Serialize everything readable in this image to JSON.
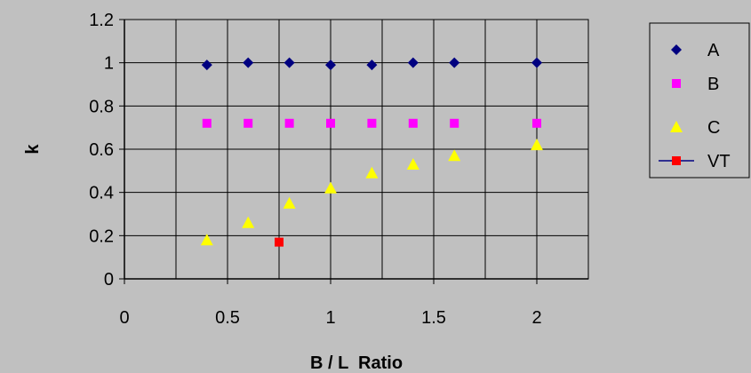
{
  "chart_data": {
    "type": "scatter",
    "xlabel": "B / L  Ratio",
    "ylabel": "k",
    "xlim": [
      0,
      2.25
    ],
    "ylim": [
      0,
      1.2
    ],
    "x_ticks": [
      0,
      0.5,
      1,
      1.5,
      2
    ],
    "x_tick_labels": [
      "0",
      "0.5",
      "1",
      "1.5",
      "2"
    ],
    "y_ticks": [
      0,
      0.2,
      0.4,
      0.6,
      0.8,
      1,
      1.2
    ],
    "y_tick_labels": [
      "0",
      "0.2",
      "0.4",
      "0.6",
      "0.8",
      "1",
      "1.2"
    ],
    "x_grid_step": 0.25,
    "grid": true,
    "legend_position": "right",
    "series": [
      {
        "name": "A",
        "marker": "diamond",
        "color": "#000080",
        "points": [
          [
            0.4,
            0.99
          ],
          [
            0.6,
            1.0
          ],
          [
            0.8,
            1.0
          ],
          [
            1.0,
            0.99
          ],
          [
            1.2,
            0.99
          ],
          [
            1.4,
            1.0
          ],
          [
            1.6,
            1.0
          ],
          [
            2.0,
            1.0
          ]
        ]
      },
      {
        "name": "B",
        "marker": "square",
        "color": "#ff00ff",
        "points": [
          [
            0.4,
            0.72
          ],
          [
            0.6,
            0.72
          ],
          [
            0.8,
            0.72
          ],
          [
            1.0,
            0.72
          ],
          [
            1.2,
            0.72
          ],
          [
            1.4,
            0.72
          ],
          [
            1.6,
            0.72
          ],
          [
            2.0,
            0.72
          ]
        ]
      },
      {
        "name": "C",
        "marker": "triangle",
        "color": "#ffff00",
        "points": [
          [
            0.4,
            0.18
          ],
          [
            0.6,
            0.26
          ],
          [
            0.8,
            0.35
          ],
          [
            1.0,
            0.42
          ],
          [
            1.2,
            0.49
          ],
          [
            1.4,
            0.53
          ],
          [
            1.6,
            0.57
          ],
          [
            2.0,
            0.62
          ]
        ]
      },
      {
        "name": "VT",
        "marker": "square-line",
        "color": "#ff0000",
        "line_color": "#000080",
        "points": [
          [
            0.75,
            0.17
          ]
        ]
      }
    ]
  }
}
